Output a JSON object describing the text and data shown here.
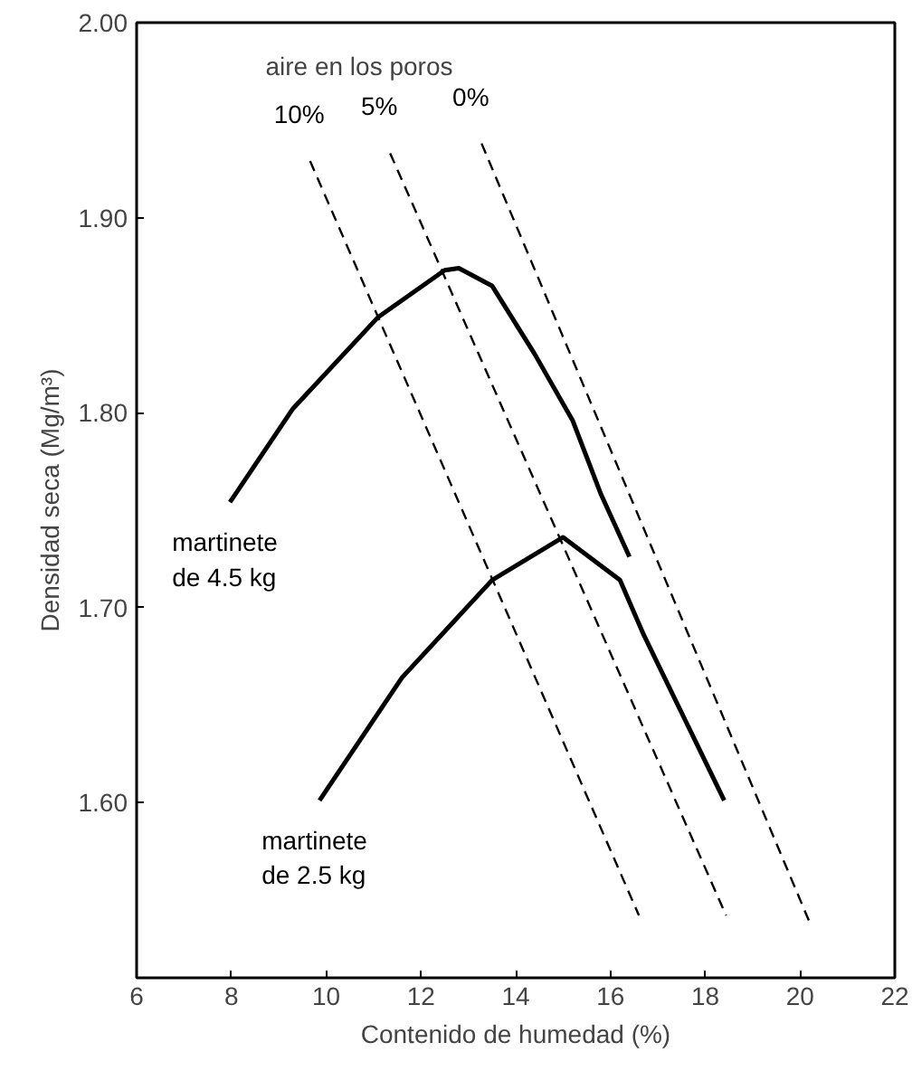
{
  "chart_data": {
    "type": "line",
    "xlabel": "Contenido de humedad (%)",
    "ylabel": "Densidad seca (Mg/m³)",
    "xlim": [
      6,
      22
    ],
    "ylim": [
      1.51,
      2.0
    ],
    "xticks": [
      6,
      8,
      10,
      12,
      14,
      16,
      18,
      20,
      22
    ],
    "yticks": [
      {
        "value": 1.6,
        "label": "1.60"
      },
      {
        "value": 1.7,
        "label": "1.70"
      },
      {
        "value": 1.8,
        "label": "1.80"
      },
      {
        "value": 1.9,
        "label": "1.90"
      },
      {
        "value": 2.0,
        "label": "2.00"
      }
    ],
    "grid": false,
    "marker": "none",
    "annotations": [
      "aire en los poros"
    ],
    "series": [
      {
        "name": "martinete\nde 4.5 kg",
        "color": "#000000",
        "line_style": "solid",
        "x": [
          7.97,
          9.3,
          11.1,
          12.5,
          12.8,
          13.5,
          14.4,
          15.2,
          15.8,
          16.4
        ],
        "values": [
          1.754,
          1.802,
          1.849,
          1.873,
          1.874,
          1.865,
          1.83,
          1.796,
          1.758,
          1.726
        ]
      },
      {
        "name": "martinete\nde 2.5 kg",
        "color": "#000000",
        "line_style": "solid",
        "x": [
          9.86,
          11.6,
          13.5,
          15.0,
          16.2,
          16.7,
          18.4
        ],
        "values": [
          1.601,
          1.664,
          1.714,
          1.736,
          1.714,
          1.686,
          1.601
        ]
      },
      {
        "name": "10%",
        "color": "#000000",
        "line_style": "dashed",
        "x": [
          9.66,
          16.6
        ],
        "values": [
          1.929,
          1.542
        ]
      },
      {
        "name": "5%",
        "color": "#000000",
        "line_style": "dashed",
        "x": [
          11.35,
          18.44
        ],
        "values": [
          1.933,
          1.542
        ]
      },
      {
        "name": "0%",
        "color": "#000000",
        "line_style": "dashed",
        "x": [
          13.28,
          20.21
        ],
        "values": [
          1.938,
          1.538
        ]
      }
    ]
  }
}
